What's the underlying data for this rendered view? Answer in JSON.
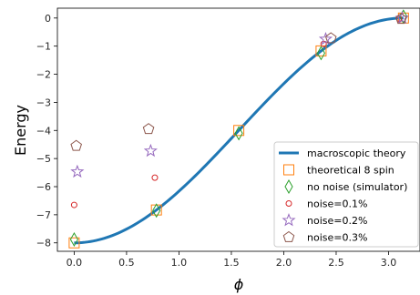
{
  "chart_data": {
    "type": "scatter",
    "xlabel": "ϕ",
    "ylabel": "Energy",
    "xlim": [
      -0.16,
      3.3
    ],
    "ylim": [
      -8.3,
      0.35
    ],
    "xticks": [
      "0.0",
      "0.5",
      "1.0",
      "1.5",
      "2.0",
      "2.5",
      "3.0"
    ],
    "xtick_values": [
      0,
      0.5,
      1.0,
      1.5,
      2.0,
      2.5,
      3.0
    ],
    "yticks": [
      "0",
      "−1",
      "−2",
      "−3",
      "−4",
      "−5",
      "−6",
      "−7",
      "−8"
    ],
    "ytick_values": [
      0,
      -1,
      -2,
      -3,
      -4,
      -5,
      -6,
      -7,
      -8
    ],
    "grid": false,
    "legend_position": "lower-right",
    "series": [
      {
        "name": "macroscopic theory",
        "kind": "line",
        "color": "#1f77b4",
        "function": "-4 - 4*cos(x)",
        "x_range": [
          0,
          3.1416
        ]
      },
      {
        "name": "theoretical 8 spin",
        "kind": "marker",
        "marker": "square",
        "color": "#ff7f0e",
        "x": [
          0.0,
          0.785,
          1.571,
          2.356,
          3.142
        ],
        "y": [
          -8.0,
          -6.83,
          -4.0,
          -1.17,
          0.0
        ]
      },
      {
        "name": "no noise (simulator)",
        "kind": "marker",
        "marker": "thin-diamond",
        "color": "#2ca02c",
        "x": [
          0.0,
          0.785,
          1.571,
          2.356,
          3.142
        ],
        "y": [
          -7.88,
          -6.85,
          -4.1,
          -1.25,
          0.05
        ]
      },
      {
        "name": "noise=0.1%",
        "kind": "marker",
        "marker": "circle",
        "color": "#d62728",
        "x": [
          0.0,
          0.77,
          2.38,
          3.1
        ],
        "y": [
          -6.65,
          -5.68,
          -0.92,
          -0.02
        ]
      },
      {
        "name": "noise=0.2%",
        "kind": "marker",
        "marker": "star",
        "color": "#9467bd",
        "x": [
          0.03,
          0.73,
          2.4,
          3.13
        ],
        "y": [
          -5.47,
          -4.73,
          -0.75,
          0.0
        ]
      },
      {
        "name": "noise=0.3%",
        "kind": "marker",
        "marker": "pentagon",
        "color": "#8c564b",
        "x": [
          0.02,
          0.71,
          2.45,
          3.12
        ],
        "y": [
          -4.55,
          -3.95,
          -0.72,
          -0.03
        ]
      }
    ]
  }
}
